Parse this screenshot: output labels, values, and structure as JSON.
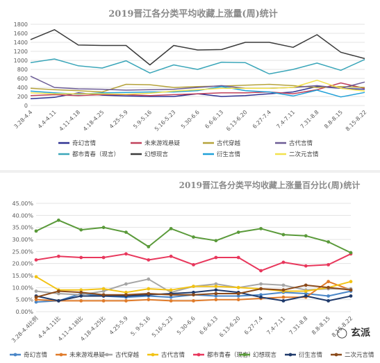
{
  "chart_data": [
    {
      "type": "line",
      "title": "2019晋江各分类平均收藏上涨量(周)统计",
      "categories": [
        "3.28-4.4",
        "4.4-4.11",
        "4.11-4.18",
        "4.18-4.25",
        "4.25-5.9",
        "5.9-5.16",
        "5.16-5.23",
        "5.30-6.6",
        "6.6-6.13",
        "6.13-6.20",
        "6.27-7.4",
        "7.4-7.11",
        "7.31-8.8",
        "8.8-8.15",
        "8.15-8.22"
      ],
      "ylim": [
        0,
        1800
      ],
      "yticks": [
        0,
        200,
        400,
        600,
        800,
        1000,
        1200,
        1400,
        1600,
        1800
      ],
      "grid": true,
      "legend_position": "bottom",
      "series": [
        {
          "name": "奇幻言情",
          "color": "#2e3192",
          "values": [
            150,
            180,
            280,
            230,
            210,
            200,
            200,
            260,
            200,
            220,
            260,
            300,
            420,
            380,
            360
          ]
        },
        {
          "name": "未来游戏悬疑",
          "color": "#c0405a",
          "values": [
            220,
            240,
            220,
            240,
            240,
            220,
            240,
            260,
            280,
            280,
            300,
            260,
            350,
            500,
            380
          ]
        },
        {
          "name": "古代穿越",
          "color": "#b5a23a",
          "values": [
            380,
            350,
            330,
            300,
            470,
            460,
            400,
            420,
            430,
            450,
            470,
            440,
            400,
            420,
            400
          ]
        },
        {
          "name": "古代言情",
          "color": "#6b5b95",
          "values": [
            650,
            400,
            370,
            360,
            340,
            350,
            360,
            400,
            440,
            380,
            380,
            400,
            440,
            380,
            520
          ]
        },
        {
          "name": "都市青春（现言）",
          "color": "#3aa6b9",
          "values": [
            950,
            1030,
            880,
            830,
            990,
            720,
            900,
            800,
            960,
            950,
            700,
            800,
            940,
            780,
            1020
          ]
        },
        {
          "name": "幻想现言",
          "color": "#3a3a3a",
          "values": [
            1460,
            1680,
            1340,
            1330,
            1330,
            900,
            1330,
            1230,
            1240,
            1400,
            1400,
            1290,
            1570,
            1180,
            1040
          ]
        },
        {
          "name": "衍生言情",
          "color": "#1fa0d8",
          "values": [
            320,
            280,
            250,
            280,
            290,
            300,
            300,
            330,
            420,
            330,
            300,
            210,
            340,
            190,
            290
          ]
        },
        {
          "name": "二次元言情",
          "color": "#f2e14c",
          "values": [
            280,
            260,
            260,
            260,
            250,
            270,
            320,
            350,
            380,
            380,
            380,
            400,
            560,
            380,
            320
          ]
        }
      ]
    },
    {
      "type": "line",
      "title": "2019晋江各分类平均收藏上涨量百分比(周)统计",
      "categories": [
        "3.28-4.4",
        "4.4-4.11比",
        "4.11-4.18比",
        "4.18-4.25比",
        "4.25-5.9",
        "5.9-5.16",
        "5.16-5.23",
        "5.30-6.6",
        "6.6-6.13",
        "6.13-6.20",
        "6.27-7.4",
        "7.4-7.11",
        "7.31-8.8",
        "8.8-8.15",
        "8.15-8.22"
      ],
      "category_labels_display": [
        "3.28-4.4比例",
        "4.4-4.11比",
        "4.11-4.18比",
        "4.18-4.25比",
        "4.25-5.9",
        "5. 9-5.16",
        "5.16-5.23",
        "5.30-6.6",
        "6.6-6.13",
        "6.13-6.20",
        "6.27-7.4",
        "7.4-7.11",
        "7.31-8.8",
        "8.8-8.15",
        "8.15-8.22"
      ],
      "ylim": [
        0,
        45
      ],
      "yticks": [
        0,
        5,
        10,
        15,
        20,
        25,
        30,
        35,
        40,
        45
      ],
      "ytick_labels": [
        "0.00%",
        "5.00%",
        "10.00%",
        "15.00%",
        "20.00%",
        "25.00%",
        "30.00%",
        "35.00%",
        "40.00%",
        "45.00%"
      ],
      "grid": true,
      "legend_position": "bottom",
      "series": [
        {
          "name": "奇幻言情",
          "color": "#4a86c7",
          "values": [
            4.0,
            4.5,
            7.5,
            6.5,
            6.0,
            6.5,
            6.0,
            7.0,
            6.5,
            6.5,
            7.0,
            8.0,
            7.5,
            6.5,
            8.5
          ]
        },
        {
          "name": "未来游戏悬疑",
          "color": "#e07b2a",
          "values": [
            5.0,
            4.5,
            4.5,
            4.5,
            4.5,
            5.0,
            4.5,
            4.5,
            5.0,
            5.0,
            5.5,
            6.0,
            6.0,
            12.5,
            9.0
          ]
        },
        {
          "name": "古代穿越",
          "color": "#a6a6a6",
          "values": [
            8.5,
            7.5,
            7.0,
            8.5,
            11.5,
            13.5,
            8.0,
            10.5,
            11.5,
            10.0,
            11.5,
            11.0,
            9.0,
            9.5,
            9.5
          ]
        },
        {
          "name": "古代言情",
          "color": "#f2c314",
          "values": [
            14.5,
            9.0,
            9.0,
            9.5,
            8.0,
            9.5,
            9.0,
            10.5,
            10.5,
            10.0,
            9.5,
            8.5,
            8.5,
            10.0,
            12.5
          ]
        },
        {
          "name": "都市青春（现言）",
          "color": "#e8375c",
          "values": [
            21.5,
            23.0,
            22.5,
            22.5,
            24.0,
            21.5,
            23.0,
            19.5,
            22.5,
            22.5,
            17.0,
            20.5,
            19.0,
            19.5,
            24.0
          ]
        },
        {
          "name": "幻想现言",
          "color": "#5a9a3a",
          "values": [
            33.5,
            38.0,
            34.0,
            35.0,
            33.0,
            27.0,
            34.5,
            31.0,
            29.5,
            33.0,
            34.5,
            32.0,
            31.5,
            29.0,
            24.5
          ]
        },
        {
          "name": "衍生言情",
          "color": "#1f3a6b",
          "values": [
            6.5,
            4.5,
            6.5,
            6.5,
            6.5,
            7.0,
            7.5,
            8.0,
            9.0,
            8.0,
            6.0,
            4.5,
            6.5,
            4.5,
            6.5
          ]
        },
        {
          "name": "二次元言情",
          "color": "#8b4a1a",
          "values": [
            6.0,
            8.5,
            8.0,
            7.0,
            7.0,
            7.5,
            7.0,
            7.0,
            7.5,
            7.5,
            9.5,
            9.0,
            11.0,
            10.0,
            9.0
          ]
        }
      ]
    }
  ],
  "watermark": {
    "text": "玄派",
    "icon": "wechat-icon"
  }
}
